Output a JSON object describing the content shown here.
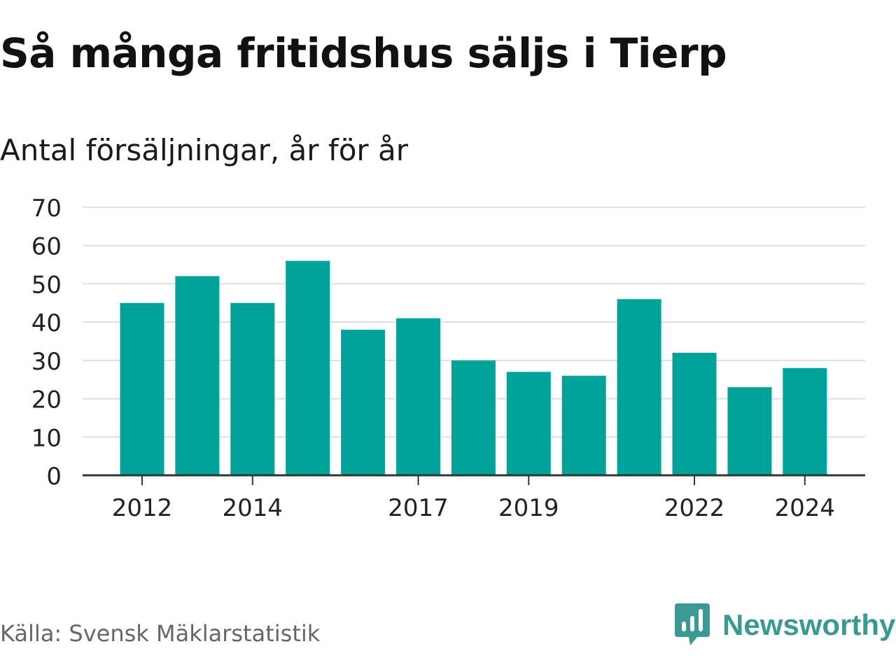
{
  "header": {
    "title": "Så många fritidshus säljs i Tierp",
    "subtitle": "Antal försäljningar, år för år"
  },
  "footer": {
    "source": "Källa: Svensk Mäklarstatistik",
    "brand": "Newsworthy",
    "brand_icon": "newsworthy-logo-icon"
  },
  "colors": {
    "bar": "#00a39a",
    "grid": "#e0e0e0",
    "axis": "#333333",
    "brand": "#3a9a93"
  },
  "chart_data": {
    "type": "bar",
    "categories": [
      "2012",
      "2013",
      "2014",
      "2015",
      "2016",
      "2017",
      "2018",
      "2019",
      "2020",
      "2021",
      "2022",
      "2023",
      "2024"
    ],
    "values": [
      45,
      52,
      45,
      56,
      38,
      41,
      30,
      27,
      26,
      46,
      32,
      23,
      28
    ],
    "tick_labels": [
      "2012",
      "2014",
      "2017",
      "2019",
      "2022",
      "2024"
    ],
    "y_ticks": [
      0,
      10,
      20,
      30,
      40,
      50,
      60,
      70
    ],
    "ylim": [
      0,
      70
    ],
    "xlabel": "",
    "ylabel": "",
    "grid": true
  }
}
